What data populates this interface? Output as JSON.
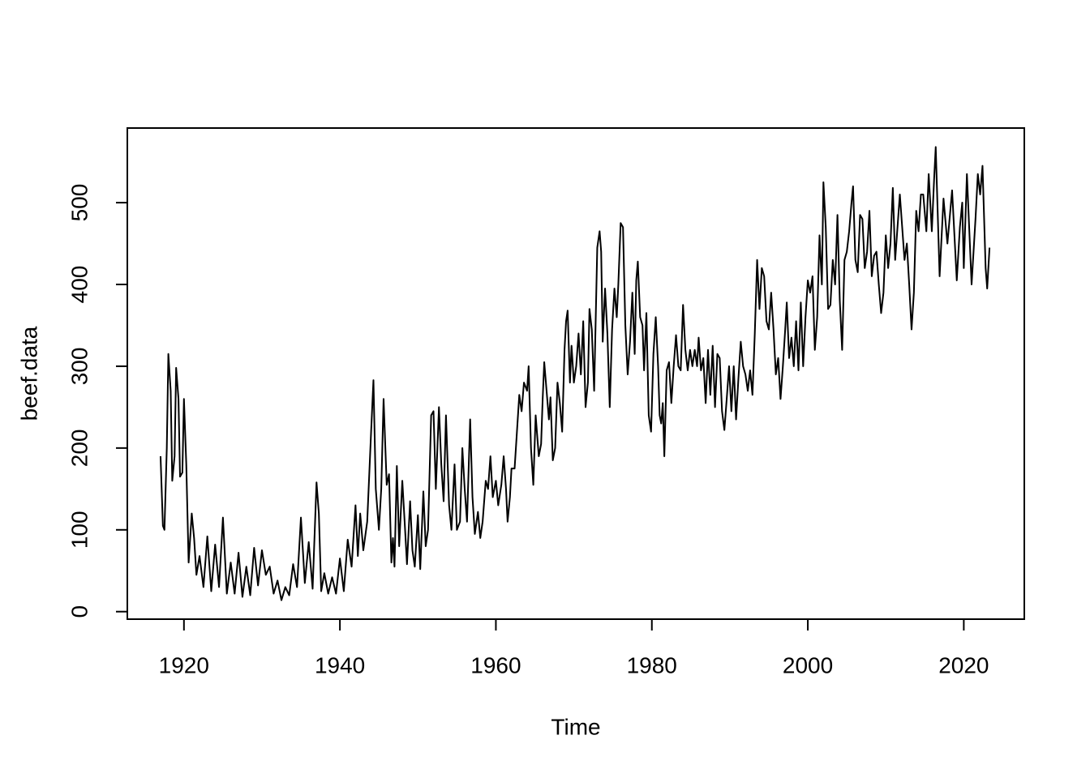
{
  "chart_data": {
    "type": "line",
    "xlabel": "Time",
    "ylabel": "beef.data",
    "color": "#000000",
    "x": [
      1917.0,
      1917.3,
      1917.5,
      1917.8,
      1918.0,
      1918.3,
      1918.5,
      1918.8,
      1919.0,
      1919.3,
      1919.5,
      1919.8,
      1920.0,
      1920.3,
      1920.6,
      1921.0,
      1921.3,
      1921.6,
      1922.0,
      1922.5,
      1923.0,
      1923.5,
      1924.0,
      1924.5,
      1925.0,
      1925.5,
      1926.0,
      1926.5,
      1927.0,
      1927.5,
      1928.0,
      1928.5,
      1929.0,
      1929.5,
      1930.0,
      1930.5,
      1931.0,
      1931.5,
      1932.0,
      1932.5,
      1933.0,
      1933.5,
      1934.0,
      1934.5,
      1935.0,
      1935.5,
      1936.0,
      1936.5,
      1937.0,
      1937.3,
      1937.6,
      1938.0,
      1938.5,
      1939.0,
      1939.5,
      1940.0,
      1940.5,
      1941.0,
      1941.5,
      1942.0,
      1942.3,
      1942.6,
      1943.0,
      1943.5,
      1944.0,
      1944.3,
      1944.6,
      1945.0,
      1945.3,
      1945.6,
      1946.0,
      1946.3,
      1946.6,
      1946.8,
      1947.0,
      1947.3,
      1947.6,
      1948.0,
      1948.3,
      1948.6,
      1949.0,
      1949.3,
      1949.6,
      1950.0,
      1950.3,
      1950.7,
      1951.0,
      1951.3,
      1951.7,
      1952.0,
      1952.3,
      1952.7,
      1953.0,
      1953.3,
      1953.6,
      1954.0,
      1954.3,
      1954.7,
      1955.0,
      1955.4,
      1955.7,
      1956.0,
      1956.3,
      1956.7,
      1957.0,
      1957.3,
      1957.7,
      1958.0,
      1958.3,
      1958.7,
      1959.0,
      1959.3,
      1959.6,
      1960.0,
      1960.3,
      1960.7,
      1961.0,
      1961.3,
      1961.5,
      1961.8,
      1962.0,
      1962.4,
      1962.7,
      1963.0,
      1963.3,
      1963.6,
      1964.0,
      1964.2,
      1964.5,
      1964.8,
      1965.1,
      1965.5,
      1965.8,
      1966.0,
      1966.2,
      1966.5,
      1966.8,
      1967.0,
      1967.3,
      1967.6,
      1967.9,
      1968.2,
      1968.5,
      1968.8,
      1969.0,
      1969.2,
      1969.5,
      1969.7,
      1970.0,
      1970.3,
      1970.6,
      1970.9,
      1971.2,
      1971.5,
      1971.8,
      1972.0,
      1972.3,
      1972.6,
      1973.0,
      1973.3,
      1973.5,
      1973.7,
      1974.0,
      1974.3,
      1974.6,
      1974.9,
      1975.2,
      1975.5,
      1975.7,
      1976.0,
      1976.3,
      1976.6,
      1976.9,
      1977.2,
      1977.5,
      1977.8,
      1978.0,
      1978.2,
      1978.5,
      1978.8,
      1979.0,
      1979.3,
      1979.6,
      1979.9,
      1980.2,
      1980.5,
      1980.8,
      1981.0,
      1981.2,
      1981.4,
      1981.6,
      1981.9,
      1982.2,
      1982.5,
      1982.8,
      1983.1,
      1983.4,
      1983.7,
      1984.0,
      1984.3,
      1984.6,
      1984.9,
      1985.2,
      1985.5,
      1985.8,
      1986.0,
      1986.3,
      1986.6,
      1986.9,
      1987.2,
      1987.5,
      1987.8,
      1988.1,
      1988.4,
      1988.7,
      1989.0,
      1989.3,
      1989.6,
      1989.9,
      1990.2,
      1990.5,
      1990.8,
      1991.1,
      1991.4,
      1991.7,
      1992.0,
      1992.3,
      1992.6,
      1992.9,
      1993.2,
      1993.5,
      1993.8,
      1994.1,
      1994.4,
      1994.7,
      1995.0,
      1995.3,
      1995.6,
      1995.9,
      1996.2,
      1996.5,
      1996.8,
      1997.1,
      1997.3,
      1997.6,
      1997.9,
      1998.2,
      1998.5,
      1998.8,
      1999.1,
      1999.4,
      1999.7,
      2000.0,
      2000.3,
      2000.6,
      2000.9,
      2001.2,
      2001.5,
      2001.8,
      2002.0,
      2002.3,
      2002.6,
      2002.9,
      2003.2,
      2003.5,
      2003.8,
      2004.1,
      2004.4,
      2004.7,
      2005.0,
      2005.3,
      2005.6,
      2005.8,
      2006.1,
      2006.4,
      2006.7,
      2007.0,
      2007.3,
      2007.6,
      2007.9,
      2008.2,
      2008.5,
      2008.8,
      2009.1,
      2009.4,
      2009.7,
      2010.0,
      2010.3,
      2010.6,
      2010.9,
      2011.2,
      2011.5,
      2011.8,
      2012.1,
      2012.4,
      2012.7,
      2013.0,
      2013.3,
      2013.6,
      2013.9,
      2014.2,
      2014.5,
      2014.8,
      2015.2,
      2015.5,
      2015.9,
      2016.2,
      2016.4,
      2016.9,
      2017.4,
      2017.9,
      2018.5,
      2019.1,
      2019.5,
      2019.8,
      2020.0,
      2020.4,
      2021.0,
      2021.5,
      2021.8,
      2022.1,
      2022.4,
      2022.8,
      2023.0,
      2023.3
    ],
    "values": [
      190,
      105,
      100,
      200,
      315,
      270,
      160,
      190,
      298,
      260,
      165,
      170,
      260,
      180,
      60,
      120,
      90,
      45,
      68,
      30,
      92,
      25,
      82,
      30,
      115,
      22,
      60,
      22,
      72,
      18,
      55,
      20,
      78,
      32,
      75,
      45,
      55,
      22,
      38,
      14,
      30,
      20,
      58,
      30,
      115,
      35,
      85,
      28,
      158,
      120,
      25,
      47,
      22,
      42,
      22,
      65,
      25,
      88,
      55,
      130,
      68,
      120,
      75,
      110,
      220,
      283,
      150,
      100,
      150,
      260,
      155,
      168,
      60,
      90,
      55,
      178,
      80,
      160,
      110,
      58,
      135,
      75,
      55,
      118,
      52,
      147,
      80,
      100,
      240,
      245,
      150,
      250,
      180,
      135,
      240,
      130,
      100,
      180,
      100,
      110,
      200,
      150,
      110,
      235,
      140,
      95,
      122,
      90,
      110,
      160,
      150,
      190,
      140,
      160,
      130,
      155,
      190,
      150,
      110,
      140,
      175,
      175,
      220,
      265,
      245,
      280,
      270,
      300,
      200,
      155,
      240,
      190,
      205,
      260,
      305,
      270,
      235,
      262,
      185,
      200,
      280,
      255,
      220,
      320,
      355,
      368,
      280,
      325,
      280,
      300,
      340,
      290,
      355,
      250,
      280,
      370,
      345,
      270,
      445,
      465,
      440,
      330,
      395,
      340,
      250,
      345,
      395,
      360,
      400,
      475,
      470,
      350,
      290,
      330,
      390,
      315,
      405,
      428,
      360,
      350,
      295,
      365,
      240,
      220,
      315,
      360,
      300,
      240,
      230,
      255,
      190,
      295,
      305,
      255,
      300,
      338,
      300,
      295,
      375,
      320,
      295,
      320,
      300,
      320,
      300,
      335,
      295,
      310,
      255,
      320,
      265,
      325,
      250,
      315,
      310,
      245,
      222,
      260,
      300,
      245,
      300,
      235,
      285,
      330,
      300,
      290,
      270,
      295,
      265,
      340,
      430,
      370,
      420,
      410,
      355,
      345,
      390,
      345,
      290,
      310,
      260,
      300,
      345,
      378,
      310,
      335,
      300,
      355,
      295,
      378,
      300,
      360,
      405,
      390,
      410,
      320,
      360,
      460,
      400,
      525,
      470,
      370,
      375,
      430,
      400,
      485,
      380,
      320,
      430,
      440,
      465,
      500,
      520,
      430,
      415,
      485,
      480,
      420,
      440,
      490,
      410,
      435,
      440,
      400,
      365,
      390,
      460,
      420,
      450,
      518,
      430,
      470,
      510,
      470,
      430,
      450,
      400,
      345,
      390,
      490,
      465,
      510,
      510,
      465,
      535,
      465,
      530,
      568,
      410,
      505,
      450,
      515,
      405,
      470,
      500,
      420,
      535,
      400,
      480,
      535,
      510,
      545,
      420,
      395,
      445
    ],
    "xlim": [
      1912.74,
      2027.76
    ],
    "ylim": [
      -9.2,
      591.2
    ],
    "xticks": [
      1920,
      1940,
      1960,
      1980,
      2000,
      2020
    ],
    "yticks": [
      0,
      100,
      200,
      300,
      400,
      500
    ]
  }
}
